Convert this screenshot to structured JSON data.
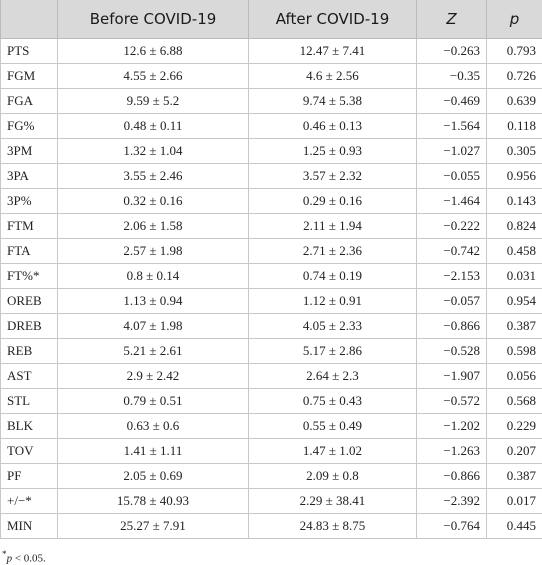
{
  "table": {
    "header": [
      "",
      "Before COVID-19",
      "After COVID-19",
      "Z",
      "p"
    ],
    "rows": [
      [
        "PTS",
        "12.6 ± 6.88",
        "12.47 ± 7.41",
        "−0.263",
        "0.793"
      ],
      [
        "FGM",
        "4.55 ± 2.66",
        "4.6 ± 2.56",
        "−0.35",
        "0.726"
      ],
      [
        "FGA",
        "9.59 ± 5.2",
        "9.74 ± 5.38",
        "−0.469",
        "0.639"
      ],
      [
        "FG%",
        "0.48 ± 0.11",
        "0.46 ± 0.13",
        "−1.564",
        "0.118"
      ],
      [
        "3PM",
        "1.32 ± 1.04",
        "1.25 ± 0.93",
        "−1.027",
        "0.305"
      ],
      [
        "3PA",
        "3.55 ± 2.46",
        "3.57 ± 2.32",
        "−0.055",
        "0.956"
      ],
      [
        "3P%",
        "0.32 ± 0.16",
        "0.29 ± 0.16",
        "−1.464",
        "0.143"
      ],
      [
        "FTM",
        "2.06 ± 1.58",
        "2.11 ± 1.94",
        "−0.222",
        "0.824"
      ],
      [
        "FTA",
        "2.57 ± 1.98",
        "2.71 ± 2.36",
        "−0.742",
        "0.458"
      ],
      [
        "FT%*",
        "0.8 ± 0.14",
        "0.74 ± 0.19",
        "−2.153",
        "0.031"
      ],
      [
        "OREB",
        "1.13 ± 0.94",
        "1.12 ± 0.91",
        "−0.057",
        "0.954"
      ],
      [
        "DREB",
        "4.07 ± 1.98",
        "4.05 ± 2.33",
        "−0.866",
        "0.387"
      ],
      [
        "REB",
        "5.21 ± 2.61",
        "5.17 ± 2.86",
        "−0.528",
        "0.598"
      ],
      [
        "AST",
        "2.9 ± 2.42",
        "2.64 ± 2.3",
        "−1.907",
        "0.056"
      ],
      [
        "STL",
        "0.79 ± 0.51",
        "0.75 ± 0.43",
        "−0.572",
        "0.568"
      ],
      [
        "BLK",
        "0.63 ± 0.6",
        "0.55 ± 0.49",
        "−1.202",
        "0.229"
      ],
      [
        "TOV",
        "1.41 ± 1.11",
        "1.47 ± 1.02",
        "−1.263",
        "0.207"
      ],
      [
        "PF",
        "2.05 ± 0.69",
        "2.09 ± 0.8",
        "−0.866",
        "0.387"
      ],
      [
        "+/−*",
        "15.78 ± 40.93",
        "2.29 ± 38.41",
        "−2.392",
        "0.017"
      ],
      [
        "MIN",
        "25.27 ± 7.91",
        "24.83 ± 8.75",
        "−0.764",
        "0.445"
      ]
    ]
  },
  "footnote": {
    "marker": "*",
    "symbol": "p",
    "text": " < 0.05."
  }
}
